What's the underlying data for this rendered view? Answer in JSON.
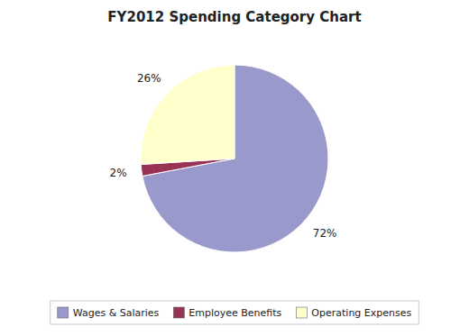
{
  "chart_data": {
    "type": "pie",
    "title": "FY2012 Spending Category Chart",
    "categories": [
      "Wages & Salaries",
      "Employee Benefits",
      "Operating Expenses"
    ],
    "values": [
      72,
      2,
      26
    ],
    "value_labels": [
      "72%",
      "2%",
      "26%"
    ],
    "colors": [
      "#9999cc",
      "#993355",
      "#ffffcc"
    ],
    "data_labels": true,
    "legend": "bottom"
  }
}
